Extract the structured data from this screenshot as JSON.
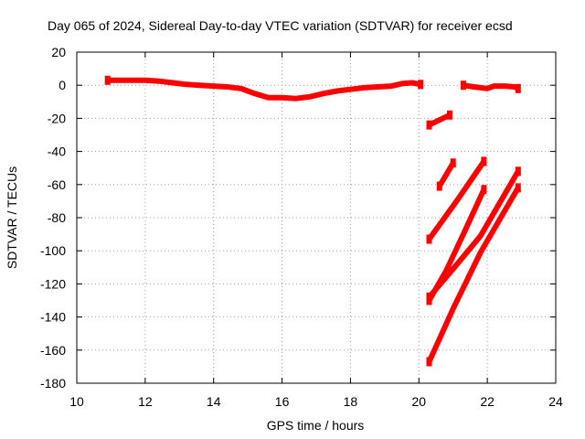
{
  "chart_data": {
    "type": "line",
    "title": "Day 065 of 2024, Sidereal Day-to-day VTEC variation (SDTVAR) for receiver ecsd",
    "xlabel": "GPS time / hours",
    "ylabel": "SDTVAR / TECUs",
    "xlim": [
      10,
      24
    ],
    "ylim": [
      -180,
      20
    ],
    "x_ticks": [
      10,
      12,
      14,
      16,
      18,
      20,
      22,
      24
    ],
    "y_ticks": [
      20,
      0,
      -20,
      -40,
      -60,
      -80,
      -100,
      -120,
      -140,
      -160,
      -180
    ],
    "grid": true,
    "legend": "none",
    "color": "#ff0000",
    "series": [
      {
        "x": [
          10.9,
          11.2,
          11.6,
          12.0,
          12.4,
          12.8,
          13.2,
          13.6,
          14.0,
          14.4,
          14.8,
          15.2,
          15.6,
          16.0,
          16.4,
          16.8,
          17.2,
          17.6,
          18.0,
          18.4,
          18.8,
          19.2,
          19.5,
          19.8,
          20.05
        ],
        "y": [
          3,
          3,
          3,
          3,
          2.5,
          1.5,
          0.5,
          0,
          -0.5,
          -1,
          -2,
          -5,
          -7.5,
          -7.5,
          -8,
          -7,
          -5,
          -3.5,
          -2.5,
          -1.5,
          -1,
          -0.5,
          1,
          1.5,
          0.5
        ]
      },
      {
        "x": [
          21.3,
          21.6,
          21.8,
          22.0,
          22.2,
          22.5,
          22.8,
          22.9
        ],
        "y": [
          0,
          -1,
          -1.5,
          -2,
          -0.5,
          -0.5,
          -1,
          -2
        ]
      },
      {
        "x": [
          20.3,
          20.9
        ],
        "y": [
          -24,
          -18
        ]
      },
      {
        "x": [
          20.6,
          21.0
        ],
        "y": [
          -61,
          -47
        ]
      },
      {
        "x": [
          20.3,
          21.1,
          21.9
        ],
        "y": [
          -93,
          -70,
          -46
        ]
      },
      {
        "x": [
          20.3,
          20.8,
          21.3,
          21.9
        ],
        "y": [
          -130,
          -112,
          -90,
          -63
        ]
      },
      {
        "x": [
          20.3,
          21.0,
          21.8,
          22.9
        ],
        "y": [
          -128,
          -111,
          -91,
          -52
        ]
      },
      {
        "x": [
          20.3,
          21.0,
          21.8,
          22.9
        ],
        "y": [
          -167,
          -135,
          -101,
          -62
        ]
      }
    ]
  }
}
